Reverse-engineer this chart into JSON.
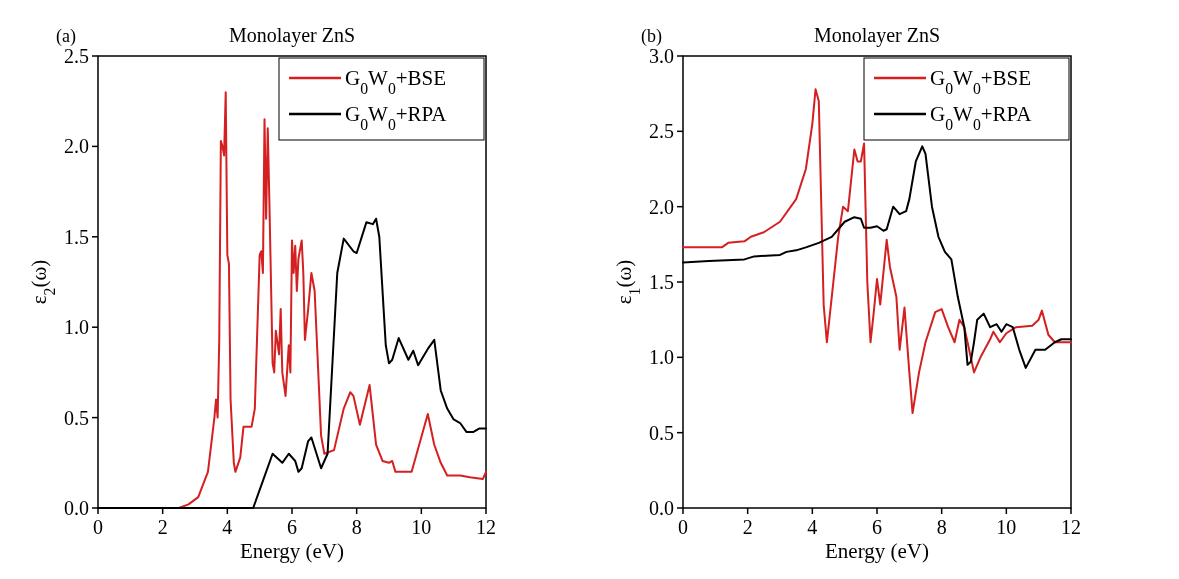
{
  "chart_data": [
    {
      "type": "line",
      "title": "Monolayer ZnS",
      "annotations": [
        "(a)"
      ],
      "xlabel": "Energy (eV)",
      "ylabel": "ε$_{2}$(ω)",
      "xlim": [
        0,
        12
      ],
      "ylim": [
        0,
        2.5
      ],
      "xticks": [
        0,
        2,
        4,
        6,
        8,
        10,
        12
      ],
      "yticks": [
        {
          "value": 0,
          "label": "0.0"
        },
        0.5,
        {
          "value": 1,
          "label": "1.0"
        },
        1.5,
        {
          "value": 2,
          "label": "2.0"
        },
        2.5
      ],
      "legend": "top right",
      "grid": false,
      "series": [
        {
          "name": "G$_{0}$W$_{0}$+BSE",
          "color": "#d42020",
          "x": [
            0,
            2.5,
            2.8,
            3.1,
            3.4,
            3.6,
            3.65,
            3.7,
            3.75,
            3.8,
            3.85,
            3.9,
            3.95,
            4.0,
            4.05,
            4.1,
            4.2,
            4.25,
            4.4,
            4.5,
            4.6,
            4.75,
            4.85,
            5.0,
            5.05,
            5.1,
            5.15,
            5.2,
            5.25,
            5.3,
            5.4,
            5.45,
            5.5,
            5.6,
            5.65,
            5.7,
            5.8,
            5.9,
            5.95,
            6.0,
            6.05,
            6.1,
            6.15,
            6.2,
            6.3,
            6.35,
            6.4,
            6.5,
            6.6,
            6.7,
            6.9,
            7.0,
            7.3,
            7.6,
            7.8,
            7.9,
            8.1,
            8.4,
            8.6,
            8.8,
            9.0,
            9.1,
            9.2,
            9.5,
            9.7,
            10.2,
            10.4,
            10.6,
            10.8,
            11.2,
            11.5,
            11.9,
            12
          ],
          "values": [
            0,
            0,
            0.02,
            0.06,
            0.2,
            0.5,
            0.6,
            0.5,
            0.93,
            2.03,
            2.0,
            1.95,
            2.3,
            1.4,
            1.35,
            0.6,
            0.25,
            0.2,
            0.28,
            0.45,
            0.45,
            0.45,
            0.55,
            1.4,
            1.42,
            1.3,
            2.15,
            1.6,
            2.1,
            1.7,
            0.8,
            0.75,
            0.98,
            0.85,
            1.1,
            0.75,
            0.62,
            0.9,
            0.75,
            1.48,
            1.3,
            1.45,
            1.2,
            1.38,
            1.48,
            1.3,
            0.93,
            1.1,
            1.3,
            1.2,
            0.4,
            0.3,
            0.32,
            0.55,
            0.64,
            0.62,
            0.46,
            0.68,
            0.35,
            0.26,
            0.25,
            0.26,
            0.2,
            0.2,
            0.2,
            0.52,
            0.35,
            0.25,
            0.18,
            0.18,
            0.17,
            0.16,
            0.2
          ]
        },
        {
          "name": "G$_{0}$W$_{0}$+RPA",
          "color": "#000000",
          "x": [
            0,
            4.8,
            5.1,
            5.4,
            5.7,
            5.9,
            6.1,
            6.2,
            6.3,
            6.5,
            6.6,
            6.9,
            7.1,
            7.4,
            7.6,
            7.9,
            8.0,
            8.3,
            8.5,
            8.6,
            8.7,
            8.9,
            9.0,
            9.1,
            9.3,
            9.6,
            9.75,
            9.9,
            10.2,
            10.4,
            10.6,
            10.8,
            11.0,
            11.2,
            11.4,
            11.6,
            11.8,
            12
          ],
          "values": [
            0,
            0,
            0.15,
            0.3,
            0.25,
            0.3,
            0.26,
            0.2,
            0.22,
            0.37,
            0.39,
            0.22,
            0.3,
            1.3,
            1.49,
            1.42,
            1.41,
            1.58,
            1.57,
            1.6,
            1.5,
            0.9,
            0.8,
            0.82,
            0.94,
            0.82,
            0.87,
            0.79,
            0.88,
            0.93,
            0.65,
            0.55,
            0.49,
            0.47,
            0.42,
            0.42,
            0.44,
            0.44
          ]
        }
      ]
    },
    {
      "type": "line",
      "title": "Monolayer ZnS",
      "annotations": [
        "(b)"
      ],
      "xlabel": "Energy (eV)",
      "ylabel": "ε$_{1}$(ω)",
      "xlim": [
        0,
        12
      ],
      "ylim": [
        0,
        3
      ],
      "xticks": [
        0,
        2,
        4,
        6,
        8,
        10,
        12
      ],
      "yticks": [
        {
          "value": 0,
          "label": "0.0"
        },
        0.5,
        {
          "value": 1,
          "label": "1.0"
        },
        1.5,
        {
          "value": 2,
          "label": "2.0"
        },
        2.5,
        {
          "value": 3,
          "label": "3.0"
        }
      ],
      "legend": "top right",
      "grid": false,
      "series": [
        {
          "name": "G$_{0}$W$_{0}$+BSE",
          "color": "#d42020",
          "x": [
            0,
            1.2,
            1.4,
            1.9,
            2.1,
            2.5,
            3.0,
            3.5,
            3.8,
            4.0,
            4.1,
            4.2,
            4.3,
            4.35,
            4.45,
            4.6,
            4.8,
            4.95,
            5.1,
            5.3,
            5.4,
            5.5,
            5.6,
            5.7,
            5.8,
            5.9,
            6.0,
            6.1,
            6.3,
            6.4,
            6.6,
            6.7,
            6.85,
            7.0,
            7.1,
            7.3,
            7.5,
            7.8,
            8.0,
            8.2,
            8.4,
            8.55,
            8.7,
            8.8,
            9.0,
            9.2,
            9.5,
            9.6,
            9.8,
            10.0,
            10.3,
            10.8,
            11.0,
            11.1,
            11.3,
            11.5,
            12
          ],
          "values": [
            1.73,
            1.73,
            1.76,
            1.77,
            1.8,
            1.83,
            1.9,
            2.05,
            2.25,
            2.55,
            2.78,
            2.7,
            1.8,
            1.35,
            1.1,
            1.4,
            1.8,
            2.0,
            1.97,
            2.38,
            2.3,
            2.3,
            2.42,
            1.5,
            1.1,
            1.3,
            1.52,
            1.35,
            1.78,
            1.6,
            1.4,
            1.05,
            1.33,
            0.9,
            0.63,
            0.9,
            1.1,
            1.3,
            1.32,
            1.2,
            1.1,
            1.25,
            1.2,
            1.1,
            0.9,
            1.0,
            1.12,
            1.17,
            1.1,
            1.16,
            1.2,
            1.21,
            1.25,
            1.31,
            1.15,
            1.1,
            1.1
          ]
        },
        {
          "name": "G$_{0}$W$_{0}$+RPA",
          "color": "#000000",
          "x": [
            0,
            0.8,
            1.9,
            2.2,
            3.0,
            3.2,
            3.5,
            3.8,
            4.2,
            4.6,
            5.0,
            5.3,
            5.5,
            5.6,
            5.8,
            6.0,
            6.2,
            6.3,
            6.5,
            6.7,
            6.9,
            7.0,
            7.2,
            7.4,
            7.5,
            7.7,
            7.9,
            8.1,
            8.3,
            8.5,
            8.7,
            8.8,
            8.9,
            9.0,
            9.1,
            9.3,
            9.5,
            9.7,
            9.85,
            10.0,
            10.2,
            10.4,
            10.6,
            10.9,
            11.2,
            11.5,
            11.7,
            12
          ],
          "values": [
            1.63,
            1.64,
            1.65,
            1.67,
            1.68,
            1.7,
            1.71,
            1.73,
            1.76,
            1.8,
            1.9,
            1.93,
            1.92,
            1.86,
            1.86,
            1.87,
            1.84,
            1.85,
            2.0,
            1.95,
            1.97,
            2.05,
            2.3,
            2.4,
            2.35,
            2.0,
            1.8,
            1.7,
            1.65,
            1.4,
            1.2,
            0.95,
            0.97,
            1.1,
            1.25,
            1.29,
            1.2,
            1.22,
            1.17,
            1.22,
            1.2,
            1.05,
            0.93,
            1.05,
            1.05,
            1.1,
            1.12,
            1.12
          ]
        }
      ]
    }
  ]
}
